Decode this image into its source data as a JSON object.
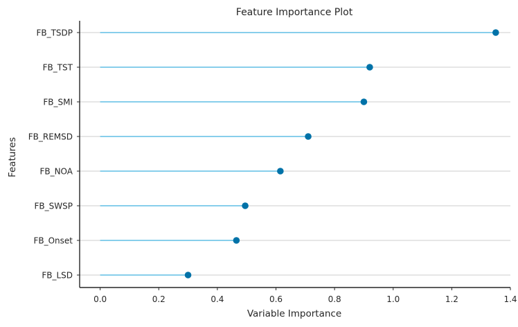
{
  "chart_data": {
    "type": "lollipop",
    "title": "Feature Importance Plot",
    "xlabel": "Variable Importance",
    "ylabel": "Features",
    "xlim": [
      -0.07,
      1.4
    ],
    "xticks": [
      0.0,
      0.2,
      0.4,
      0.6,
      0.8,
      1.0,
      1.2,
      1.4
    ],
    "xtick_labels": [
      "0.0",
      "0.2",
      "0.4",
      "0.6",
      "0.8",
      "1.0",
      "1.2",
      "1.4"
    ],
    "categories": [
      "FB_TSDP",
      "FB_TST",
      "FB_SMI",
      "FB_REMSD",
      "FB_NOA",
      "FB_SWSP",
      "FB_Onset",
      "FB_LSD"
    ],
    "values": [
      1.35,
      0.92,
      0.9,
      0.71,
      0.615,
      0.495,
      0.465,
      0.3
    ],
    "grid": {
      "x": false,
      "y": true
    },
    "colors": {
      "stem": "#87CEEB",
      "marker": "#0072A8",
      "grid": "#cccccc",
      "axis": "#262626"
    }
  }
}
